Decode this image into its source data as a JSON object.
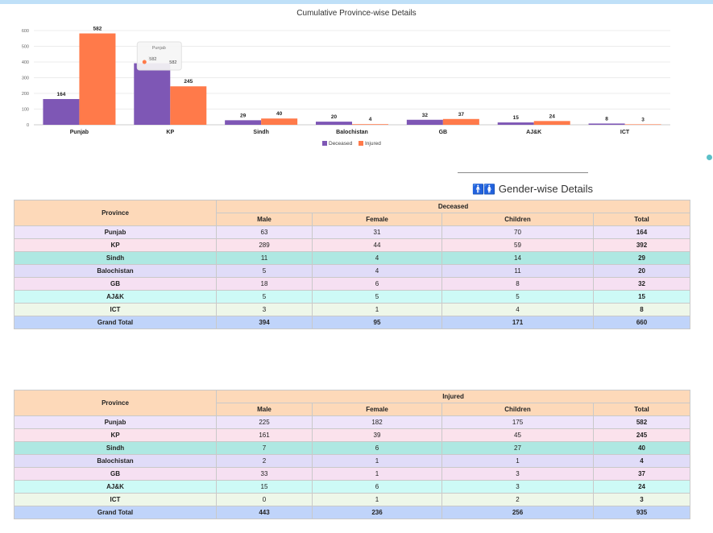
{
  "chart_data": {
    "type": "bar",
    "title": "Cumulative Province-wise Details",
    "categories": [
      "Punjab",
      "KP",
      "Sindh",
      "Balochistan",
      "GB",
      "AJ&K",
      "ICT"
    ],
    "series": [
      {
        "name": "Deceased",
        "values": [
          164,
          392,
          29,
          20,
          32,
          15,
          8
        ],
        "color": "#7e57b5"
      },
      {
        "name": "Injured",
        "values": [
          582,
          245,
          40,
          4,
          37,
          24,
          3
        ],
        "color": "#ff7a4a"
      }
    ],
    "ylim": [
      0,
      600
    ],
    "yticks": [
      0,
      100,
      200,
      300,
      400,
      500,
      600
    ],
    "grid": true,
    "legend": "bottom-center",
    "tooltip": {
      "title": "Punjab",
      "text": "582",
      "label": "582"
    }
  },
  "gender_title": "Gender-wise Details",
  "deceased_table": {
    "group": "Deceased",
    "headers": {
      "province": "Province",
      "male": "Male",
      "female": "Female",
      "children": "Children",
      "total": "Total"
    },
    "rows": [
      {
        "province": "Punjab",
        "male": "63",
        "female": "31",
        "children": "70",
        "total": "164"
      },
      {
        "province": "KP",
        "male": "289",
        "female": "44",
        "children": "59",
        "total": "392"
      },
      {
        "province": "Sindh",
        "male": "11",
        "female": "4",
        "children": "14",
        "total": "29"
      },
      {
        "province": "Balochistan",
        "male": "5",
        "female": "4",
        "children": "11",
        "total": "20"
      },
      {
        "province": "GB",
        "male": "18",
        "female": "6",
        "children": "8",
        "total": "32"
      },
      {
        "province": "AJ&K",
        "male": "5",
        "female": "5",
        "children": "5",
        "total": "15"
      },
      {
        "province": "ICT",
        "male": "3",
        "female": "1",
        "children": "4",
        "total": "8"
      },
      {
        "province": "Grand Total",
        "male": "394",
        "female": "95",
        "children": "171",
        "total": "660"
      }
    ]
  },
  "injured_table": {
    "group": "Injured",
    "headers": {
      "province": "Province",
      "male": "Male",
      "female": "Female",
      "children": "Children",
      "total": "Total"
    },
    "rows": [
      {
        "province": "Punjab",
        "male": "225",
        "female": "182",
        "children": "175",
        "total": "582"
      },
      {
        "province": "KP",
        "male": "161",
        "female": "39",
        "children": "45",
        "total": "245"
      },
      {
        "province": "Sindh",
        "male": "7",
        "female": "6",
        "children": "27",
        "total": "40"
      },
      {
        "province": "Balochistan",
        "male": "2",
        "female": "1",
        "children": "1",
        "total": "4"
      },
      {
        "province": "GB",
        "male": "33",
        "female": "1",
        "children": "3",
        "total": "37"
      },
      {
        "province": "AJ&K",
        "male": "15",
        "female": "6",
        "children": "3",
        "total": "24"
      },
      {
        "province": "ICT",
        "male": "0",
        "female": "1",
        "children": "2",
        "total": "3"
      },
      {
        "province": "Grand Total",
        "male": "443",
        "female": "236",
        "children": "256",
        "total": "935"
      }
    ]
  }
}
